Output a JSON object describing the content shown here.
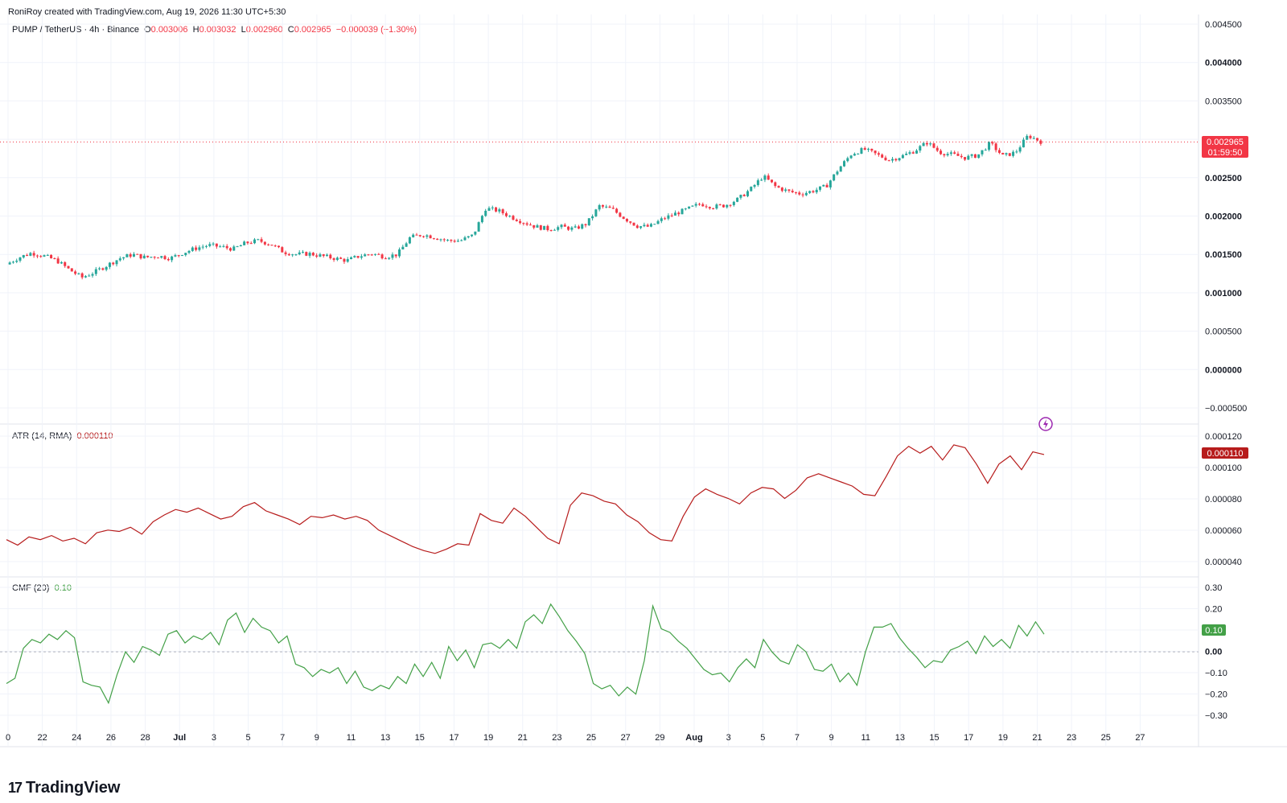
{
  "header": {
    "text": "RoniRoy created with TradingView.com, Aug 19, 2026 11:30 UTC+5:30"
  },
  "main_legend": {
    "symbol": "PUMP / TetherUS · 4h · Binance",
    "o_label": "O",
    "o_value": "0.003006",
    "h_label": "H",
    "h_value": "0.003032",
    "l_label": "L",
    "l_value": "0.002960",
    "c_label": "C",
    "c_value": "0.002965",
    "change": "−0.000039 (−1.30%)"
  },
  "atr_legend": {
    "name": "ATR (14, RMA)",
    "value": "0.000110"
  },
  "cmf_legend": {
    "name": "CMF (20)",
    "value": "0.10"
  },
  "price_badge": {
    "price": "0.002965",
    "countdown": "01:59:50"
  },
  "atr_badge": "0.000110",
  "cmf_badge": "0.10",
  "footer": {
    "logo_text": "TradingView",
    "logo_mark": "17"
  },
  "colors": {
    "up": "#26a69a",
    "down": "#f23645",
    "atr": "#b71c1c",
    "cmf": "#43a047",
    "grid": "#f0f3fa"
  },
  "chart_data": [
    {
      "type": "candlestick",
      "title": "PUMP / TetherUS · 4h · Binance",
      "y_ticks": [
        "0.004500",
        "0.004000",
        "0.003500",
        "0.003000",
        "0.002500",
        "0.002000",
        "0.001500",
        "0.001000",
        "0.000500",
        "0.000000",
        "−0.000500"
      ],
      "ylim": [
        -0.0005,
        0.0045
      ],
      "last_price": 0.002965,
      "x_ticks": [
        "0",
        "22",
        "24",
        "26",
        "28",
        "Jul",
        "3",
        "5",
        "7",
        "9",
        "11",
        "13",
        "15",
        "17",
        "19",
        "21",
        "23",
        "25",
        "27",
        "29",
        "Aug",
        "3",
        "5",
        "7",
        "9",
        "11",
        "13",
        "15",
        "17",
        "19",
        "21",
        "23",
        "25",
        "27"
      ],
      "bold_x_ticks": [
        "Jul",
        "Aug"
      ],
      "close_path": [
        [
          0,
          0.00137
        ],
        [
          1,
          0.00146
        ],
        [
          2,
          0.00152
        ],
        [
          3,
          0.00148
        ],
        [
          4,
          0.00142
        ],
        [
          5,
          0.0013
        ],
        [
          6,
          0.0012
        ],
        [
          7,
          0.00127
        ],
        [
          8,
          0.00136
        ],
        [
          9,
          0.00145
        ],
        [
          10,
          0.0015
        ],
        [
          11,
          0.00146
        ],
        [
          12,
          0.00148
        ],
        [
          13,
          0.00145
        ],
        [
          14,
          0.00152
        ],
        [
          15,
          0.00158
        ],
        [
          16,
          0.00162
        ],
        [
          17,
          0.0016
        ],
        [
          18,
          0.00157
        ],
        [
          19,
          0.00165
        ],
        [
          20,
          0.00168
        ],
        [
          21,
          0.00163
        ],
        [
          22,
          0.00153
        ],
        [
          23,
          0.0015
        ],
        [
          24,
          0.00151
        ],
        [
          25,
          0.00148
        ],
        [
          26,
          0.00145
        ],
        [
          27,
          0.00142
        ],
        [
          28,
          0.00148
        ],
        [
          29,
          0.00151
        ],
        [
          30,
          0.00147
        ],
        [
          31,
          0.0015
        ],
        [
          32,
          0.00172
        ],
        [
          33,
          0.00176
        ],
        [
          34,
          0.00172
        ],
        [
          35,
          0.00168
        ],
        [
          36,
          0.00168
        ],
        [
          37,
          0.00175
        ],
        [
          38,
          0.0021
        ],
        [
          39,
          0.00207
        ],
        [
          40,
          0.00199
        ],
        [
          41,
          0.00192
        ],
        [
          42,
          0.00186
        ],
        [
          43,
          0.00183
        ],
        [
          44,
          0.00186
        ],
        [
          45,
          0.00183
        ],
        [
          46,
          0.0019
        ],
        [
          47,
          0.00213
        ],
        [
          48,
          0.00209
        ],
        [
          49,
          0.00197
        ],
        [
          50,
          0.00187
        ],
        [
          51,
          0.00186
        ],
        [
          52,
          0.00196
        ],
        [
          53,
          0.00203
        ],
        [
          54,
          0.00209
        ],
        [
          55,
          0.00216
        ],
        [
          56,
          0.00212
        ],
        [
          57,
          0.00214
        ],
        [
          58,
          0.00222
        ],
        [
          59,
          0.00235
        ],
        [
          60,
          0.00252
        ],
        [
          61,
          0.00238
        ],
        [
          62,
          0.00232
        ],
        [
          63,
          0.00229
        ],
        [
          64,
          0.00233
        ],
        [
          65,
          0.00239
        ],
        [
          66,
          0.00262
        ],
        [
          67,
          0.00281
        ],
        [
          68,
          0.00287
        ],
        [
          69,
          0.0028
        ],
        [
          70,
          0.00273
        ],
        [
          71,
          0.00278
        ],
        [
          72,
          0.00285
        ],
        [
          73,
          0.00296
        ],
        [
          74,
          0.00283
        ],
        [
          75,
          0.0028
        ],
        [
          76,
          0.00276
        ],
        [
          77,
          0.00279
        ],
        [
          78,
          0.00295
        ],
        [
          79,
          0.00278
        ],
        [
          80,
          0.00283
        ],
        [
          81,
          0.00305
        ],
        [
          82,
          0.00297
        ]
      ]
    },
    {
      "type": "line",
      "title": "ATR (14, RMA)",
      "y_ticks": [
        "0.000120",
        "0.000100",
        "0.000080",
        "0.000060",
        "0.000040"
      ],
      "ylim": [
        3.3e-05,
        0.000125
      ],
      "series": [
        {
          "name": "ATR (14, RMA)",
          "values": [
            4.9e-05,
            4.5e-05,
            5.1e-05,
            4.9e-05,
            5.2e-05,
            4.8e-05,
            5e-05,
            4.6e-05,
            5.4e-05,
            5.6e-05,
            5.5e-05,
            5.8e-05,
            5.3e-05,
            6.2e-05,
            6.7e-05,
            7.1e-05,
            6.9e-05,
            7.2e-05,
            6.8e-05,
            6.4e-05,
            6.6e-05,
            7.3e-05,
            7.6e-05,
            7e-05,
            6.7e-05,
            6.4e-05,
            6e-05,
            6.6e-05,
            6.5e-05,
            6.7e-05,
            6.4e-05,
            6.6e-05,
            6.3e-05,
            5.6e-05,
            5.2e-05,
            4.8e-05,
            4.4e-05,
            4.1e-05,
            3.9e-05,
            4.2e-05,
            4.6e-05,
            4.5e-05,
            6.8e-05,
            6.3e-05,
            6.1e-05,
            7.2e-05,
            6.6e-05,
            5.8e-05,
            5e-05,
            4.6e-05,
            7.4e-05,
            8.3e-05,
            8.1e-05,
            7.7e-05,
            7.5e-05,
            6.7e-05,
            6.2e-05,
            5.4e-05,
            4.9e-05,
            4.8e-05,
            6.6e-05,
            8e-05,
            8.6e-05,
            8.2e-05,
            7.9e-05,
            7.5e-05,
            8.3e-05,
            8.7e-05,
            8.6e-05,
            7.9e-05,
            8.5e-05,
            9.4e-05,
            9.7e-05,
            9.4e-05,
            9.1e-05,
            8.8e-05,
            8.2e-05,
            8.1e-05,
            9.5e-05,
            0.00011,
            0.000117,
            0.000112,
            0.000117,
            0.000107,
            0.000118,
            0.000116,
            0.000104,
            9e-05,
            0.000104,
            0.00011,
            0.0001,
            0.000113,
            0.000111
          ]
        }
      ]
    },
    {
      "type": "line",
      "title": "CMF (20)",
      "y_ticks": [
        "0.30",
        "0.20",
        "0.10",
        "0.00",
        "−0.10",
        "−0.20",
        "−0.30"
      ],
      "ylim": [
        -0.36,
        0.37
      ],
      "zero_line": 0.0,
      "series": [
        {
          "name": "CMF (20)",
          "values": [
            -0.18,
            -0.15,
            0.02,
            0.07,
            0.05,
            0.1,
            0.07,
            0.12,
            0.08,
            -0.17,
            -0.19,
            -0.2,
            -0.29,
            -0.13,
            0.0,
            -0.06,
            0.03,
            0.01,
            -0.02,
            0.1,
            0.12,
            0.05,
            0.09,
            0.07,
            0.11,
            0.04,
            0.18,
            0.22,
            0.11,
            0.19,
            0.14,
            0.12,
            0.05,
            0.09,
            -0.07,
            -0.09,
            -0.14,
            -0.1,
            -0.12,
            -0.09,
            -0.18,
            -0.11,
            -0.2,
            -0.22,
            -0.19,
            -0.21,
            -0.14,
            -0.18,
            -0.07,
            -0.14,
            -0.06,
            -0.15,
            0.03,
            -0.05,
            0.01,
            -0.09,
            0.04,
            0.05,
            0.02,
            0.07,
            0.02,
            0.17,
            0.21,
            0.16,
            0.27,
            0.2,
            0.12,
            0.06,
            -0.01,
            -0.18,
            -0.21,
            -0.19,
            -0.25,
            -0.2,
            -0.24,
            -0.05,
            0.26,
            0.13,
            0.11,
            0.06,
            0.02,
            -0.04,
            -0.1,
            -0.13,
            -0.12,
            -0.17,
            -0.09,
            -0.04,
            -0.09,
            0.07,
            0.0,
            -0.05,
            -0.07,
            0.04,
            0.0,
            -0.1,
            -0.11,
            -0.07,
            -0.17,
            -0.12,
            -0.19,
            0.0,
            0.14,
            0.14,
            0.16,
            0.08,
            0.02,
            -0.03,
            -0.09,
            -0.05,
            -0.06,
            0.01,
            0.03,
            0.06,
            -0.01,
            0.09,
            0.03,
            0.07,
            0.02,
            0.15,
            0.09,
            0.17,
            0.1
          ]
        }
      ]
    }
  ]
}
